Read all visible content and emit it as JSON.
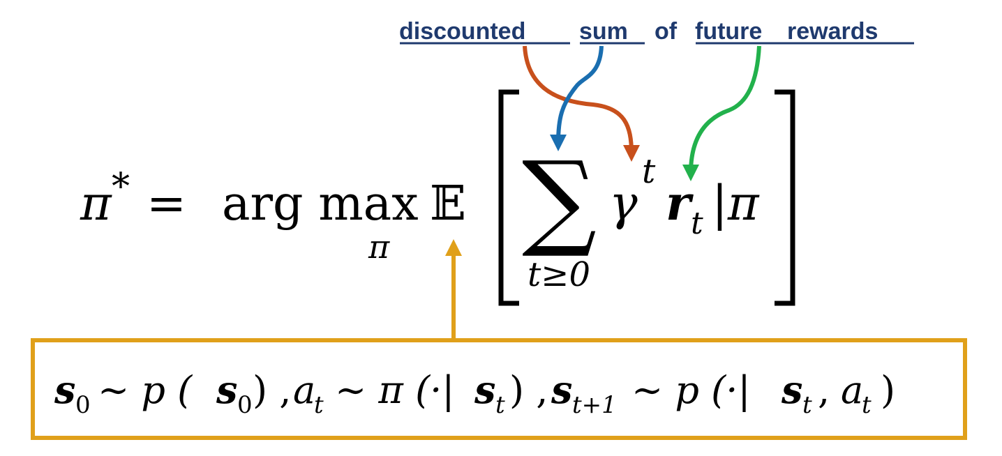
{
  "caption": {
    "word1": "discounted",
    "word2": "sum",
    "word3": "of",
    "word4": "future",
    "word5": "rewards"
  },
  "equation": {
    "pi": "π",
    "star": "*",
    "equals": "=",
    "argmax": "arg max",
    "argmax_sub": "π",
    "expect": "𝔼",
    "sum_symbol": "∑",
    "sum_sub": "t≥0",
    "gamma": "γ",
    "gamma_sup": "t",
    "r": "r",
    "r_sub": "t",
    "cond": "|π"
  },
  "box": {
    "s0": "s",
    "s0_sub": "0",
    "sim1": "∼ p (",
    "s0b": "s",
    "s0b_sub": "0",
    "close1": ") ,",
    "a": "a",
    "a_sub": "t",
    "sim2": "∼ π (·|",
    "st": "s",
    "st_sub": "t",
    "close2": ") ,",
    "st1": "s",
    "st1_sub": "t+1",
    "sim3": "∼ p (·|",
    "st2": "s",
    "st2_sub": "t",
    "comma": ",",
    "a2": "a",
    "a2_sub": "t",
    "close3": ")"
  },
  "colors": {
    "discounted_arrow": "#c8501c",
    "sum_arrow": "#1a6eb0",
    "rewards_arrow": "#22b14c",
    "box_border": "#e0a01a",
    "caption_text": "#1f3a6e"
  }
}
